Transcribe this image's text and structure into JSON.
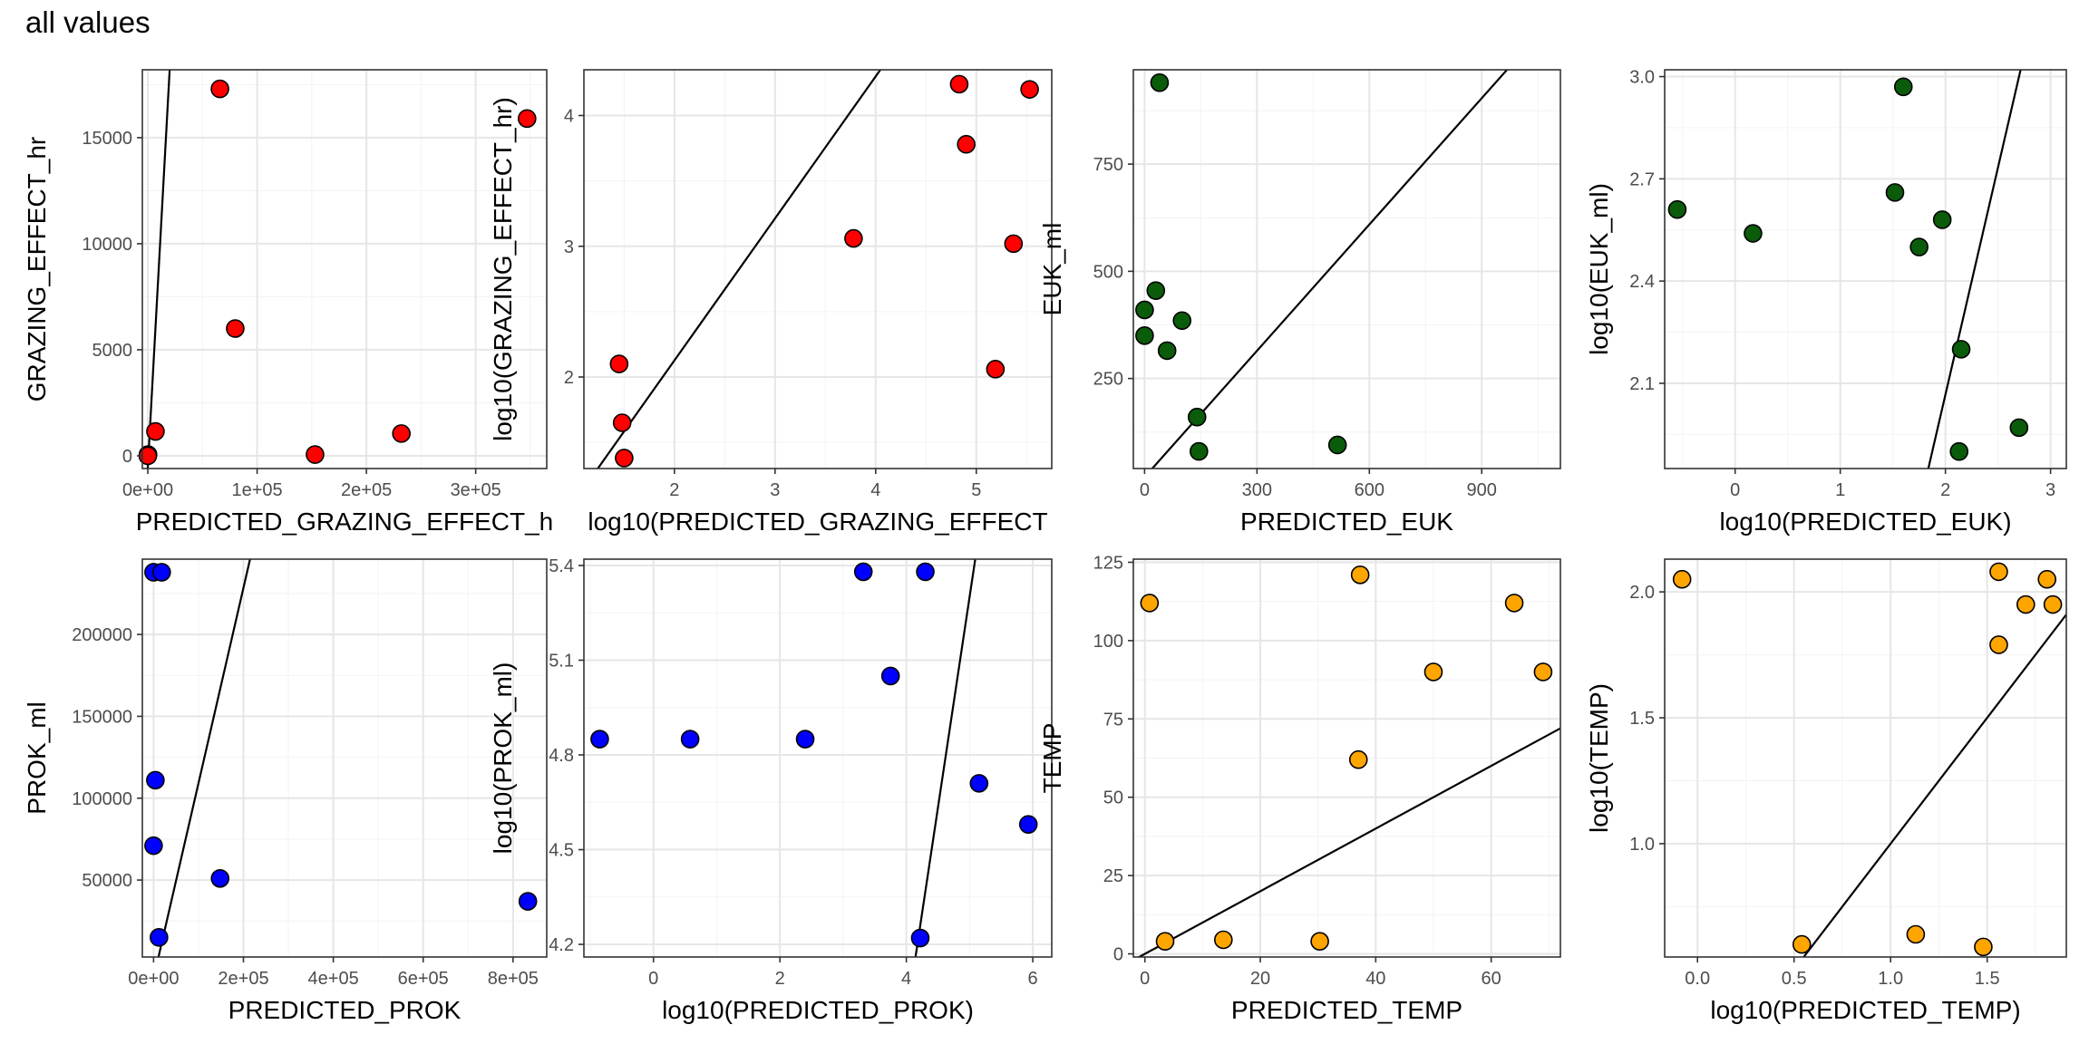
{
  "title": "all values",
  "colors": {
    "panel_border": "#333333",
    "grid_major": "#e6e6e6",
    "grid_minor": "#f3f3f3",
    "fit_line": "#000000",
    "point_stroke": "#000000"
  },
  "chart_data": [
    {
      "type": "scatter",
      "xlabel": "PREDICTED_GRAZING_EFFECT_h",
      "ylabel": "GRAZING_EFFECT_hr",
      "xlim": [
        -5000,
        365000
      ],
      "ylim": [
        -600,
        18200
      ],
      "xticks": [
        0,
        100000,
        200000,
        300000
      ],
      "xtick_labels": [
        "0e+00",
        "1e+05",
        "2e+05",
        "3e+05"
      ],
      "yticks": [
        0,
        5000,
        10000,
        15000
      ],
      "ytick_labels": [
        "0",
        "5000",
        "10000",
        "15000"
      ],
      "grid": true,
      "color": "#ff0000",
      "points": [
        [
          66000,
          17300
        ],
        [
          347000,
          15900
        ],
        [
          80000,
          6000
        ],
        [
          7000,
          1150
        ],
        [
          232000,
          1050
        ],
        [
          153000,
          60
        ],
        [
          200,
          60
        ],
        [
          0,
          0
        ]
      ],
      "line": [
        [
          -500,
          -1000
        ],
        [
          20000,
          18200
        ]
      ]
    },
    {
      "type": "scatter",
      "xlabel": "log10(PREDICTED_GRAZING_EFFECT",
      "ylabel": "log10(GRAZING_EFFECT_hr)",
      "xlim": [
        1.1,
        5.75
      ],
      "ylim": [
        1.3,
        4.35
      ],
      "xticks": [
        2,
        3,
        4,
        5
      ],
      "xtick_labels": [
        "2",
        "3",
        "4",
        "5"
      ],
      "yticks": [
        2,
        3,
        4
      ],
      "ytick_labels": [
        "2",
        "3",
        "4"
      ],
      "grid": true,
      "color": "#ff0000",
      "points": [
        [
          4.83,
          4.24
        ],
        [
          5.53,
          4.2
        ],
        [
          4.9,
          3.78
        ],
        [
          3.78,
          3.06
        ],
        [
          5.37,
          3.02
        ],
        [
          1.45,
          2.1
        ],
        [
          5.19,
          2.06
        ],
        [
          1.48,
          1.65
        ],
        [
          1.5,
          1.38
        ]
      ],
      "line": [
        [
          1.1,
          1.15
        ],
        [
          5.75,
          6.2
        ]
      ]
    },
    {
      "type": "scatter",
      "xlabel": "PREDICTED_EUK",
      "ylabel": "EUK_ml",
      "xlim": [
        -30,
        1110
      ],
      "ylim": [
        40,
        970
      ],
      "xticks": [
        0,
        300,
        600,
        900
      ],
      "xtick_labels": [
        "0",
        "300",
        "600",
        "900"
      ],
      "yticks": [
        250,
        500,
        750
      ],
      "ytick_labels": [
        "250",
        "500",
        "750"
      ],
      "grid": true,
      "color": "#0a5c0a",
      "points": [
        [
          40,
          940
        ],
        [
          30,
          455
        ],
        [
          0,
          410
        ],
        [
          100,
          385
        ],
        [
          0,
          350
        ],
        [
          60,
          315
        ],
        [
          140,
          160
        ],
        [
          515,
          95
        ],
        [
          145,
          80
        ]
      ],
      "line": [
        [
          0,
          20
        ],
        [
          1110,
          1110
        ]
      ]
    },
    {
      "type": "scatter",
      "xlabel": "log10(PREDICTED_EUK)",
      "ylabel": "log10(EUK_ml)",
      "xlim": [
        -0.67,
        3.15
      ],
      "ylim": [
        1.85,
        3.02
      ],
      "xticks": [
        0,
        1,
        2,
        3
      ],
      "xtick_labels": [
        "0",
        "1",
        "2",
        "3"
      ],
      "yticks": [
        2.1,
        2.4,
        2.7,
        3.0
      ],
      "ytick_labels": [
        "2.1",
        "2.4",
        "2.7",
        "3.0"
      ],
      "grid": true,
      "color": "#0a5c0a",
      "points": [
        [
          1.6,
          2.97
        ],
        [
          1.52,
          2.66
        ],
        [
          -0.55,
          2.61
        ],
        [
          1.97,
          2.58
        ],
        [
          0.17,
          2.54
        ],
        [
          1.75,
          2.5
        ],
        [
          2.15,
          2.2
        ],
        [
          2.7,
          1.97
        ],
        [
          2.13,
          1.9
        ]
      ],
      "line": [
        [
          1.8,
          1.8
        ],
        [
          3.15,
          3.6
        ]
      ]
    },
    {
      "type": "scatter",
      "xlabel": "PREDICTED_PROK",
      "ylabel": "PROK_ml",
      "xlim": [
        -25000,
        875000
      ],
      "ylim": [
        3000,
        246000
      ],
      "xticks": [
        0,
        200000,
        400000,
        600000,
        800000
      ],
      "xtick_labels": [
        "0e+00",
        "2e+05",
        "4e+05",
        "6e+05",
        "8e+05"
      ],
      "yticks": [
        50000,
        100000,
        150000,
        200000
      ],
      "ytick_labels": [
        "50000",
        "100000",
        "150000",
        "200000"
      ],
      "grid": true,
      "color": "#0000ff",
      "points": [
        [
          0,
          238000
        ],
        [
          18000,
          238000
        ],
        [
          4000,
          111000
        ],
        [
          0,
          71000
        ],
        [
          148000,
          51000
        ],
        [
          833000,
          37000
        ],
        [
          12000,
          15000
        ]
      ],
      "line": [
        [
          0,
          -10000
        ],
        [
          260000,
          300000
        ]
      ]
    },
    {
      "type": "scatter",
      "xlabel": "log10(PREDICTED_PROK)",
      "ylabel": "log10(PROK_ml)",
      "xlim": [
        -1.1,
        6.3
      ],
      "ylim": [
        4.16,
        5.42
      ],
      "xticks": [
        0,
        2,
        4,
        6
      ],
      "xtick_labels": [
        "0",
        "2",
        "4",
        "6"
      ],
      "yticks": [
        4.2,
        4.5,
        4.8,
        5.1,
        5.4
      ],
      "ytick_labels": [
        "4.2",
        "4.5",
        "4.8",
        "5.1",
        "5.4"
      ],
      "grid": true,
      "color": "#0000ff",
      "points": [
        [
          3.32,
          5.38
        ],
        [
          4.3,
          5.38
        ],
        [
          3.75,
          5.05
        ],
        [
          -0.85,
          4.85
        ],
        [
          0.58,
          4.85
        ],
        [
          2.4,
          4.85
        ],
        [
          5.15,
          4.71
        ],
        [
          5.93,
          4.58
        ],
        [
          4.22,
          4.22
        ]
      ],
      "line": [
        [
          4.1,
          4.1
        ],
        [
          5.15,
          5.5
        ]
      ]
    },
    {
      "type": "scatter",
      "xlabel": "PREDICTED_TEMP",
      "ylabel": "TEMP",
      "xlim": [
        -2,
        72
      ],
      "ylim": [
        -1,
        126
      ],
      "xticks": [
        0,
        20,
        40,
        60
      ],
      "xtick_labels": [
        "0",
        "20",
        "40",
        "60"
      ],
      "yticks": [
        0,
        25,
        50,
        75,
        100,
        125
      ],
      "ytick_labels": [
        "0",
        "25",
        "50",
        "75",
        "100",
        "125"
      ],
      "grid": true,
      "color": "#ffa500",
      "points": [
        [
          0.8,
          112
        ],
        [
          37.3,
          121
        ],
        [
          64,
          112
        ],
        [
          50,
          90
        ],
        [
          69,
          90
        ],
        [
          37,
          62
        ],
        [
          3.5,
          4
        ],
        [
          13.6,
          4.5
        ],
        [
          30.3,
          4
        ]
      ],
      "line": [
        [
          -2,
          -2
        ],
        [
          72,
          72
        ]
      ]
    },
    {
      "type": "scatter",
      "xlabel": "log10(PREDICTED_TEMP)",
      "ylabel": "log10(TEMP)",
      "xlim": [
        -0.17,
        1.91
      ],
      "ylim": [
        0.55,
        2.13
      ],
      "xticks": [
        0,
        0.5,
        1.0,
        1.5
      ],
      "xtick_labels": [
        "0.0",
        "0.5",
        "1.0",
        "1.5"
      ],
      "yticks": [
        1.0,
        1.5,
        2.0
      ],
      "ytick_labels": [
        "1.0",
        "1.5",
        "2.0"
      ],
      "grid": true,
      "color": "#ffa500",
      "points": [
        [
          -0.08,
          2.05
        ],
        [
          1.56,
          2.08
        ],
        [
          1.81,
          2.05
        ],
        [
          1.7,
          1.95
        ],
        [
          1.84,
          1.95
        ],
        [
          1.56,
          1.79
        ],
        [
          0.54,
          0.6
        ],
        [
          1.13,
          0.64
        ],
        [
          1.48,
          0.59
        ]
      ],
      "line": [
        [
          0.5,
          0.5
        ],
        [
          1.91,
          1.91
        ]
      ]
    }
  ]
}
